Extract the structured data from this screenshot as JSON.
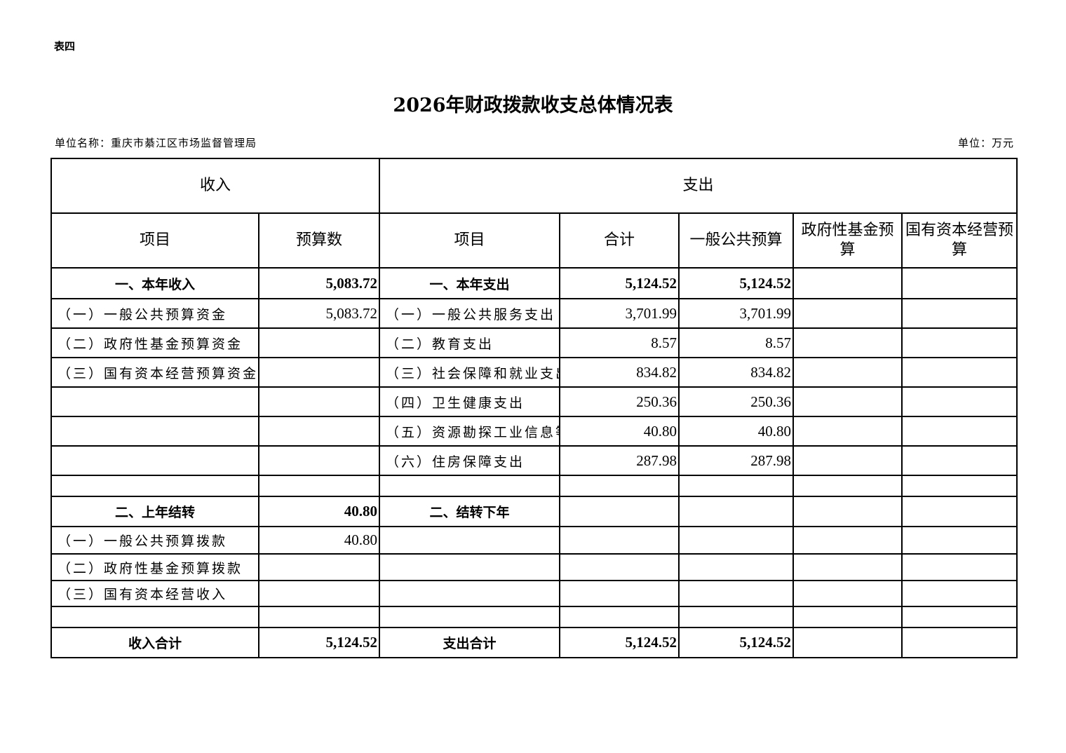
{
  "doc": {
    "tag": "表四",
    "title": "2026年财政拨款收支总体情况表",
    "unit_name": "单位名称：重庆市綦江区市场监督管理局",
    "unit": "单位：万元"
  },
  "header": {
    "income": "收入",
    "expense": "支出",
    "item": "项目",
    "budget": "预算数",
    "item2": "项目",
    "total": "合计",
    "general": "一般公共预算",
    "fund": "政府性基金预算",
    "state": "国有资本经营预算"
  },
  "rows": [
    {
      "inc": "一、本年收入",
      "incv": "5,083.72",
      "exp": "一、本年支出",
      "tot": "5,124.52",
      "gen": "5,124.52",
      "bold": true
    },
    {
      "inc": "（一）一般公共预算资金",
      "incv": "5,083.72",
      "exp": "（一）一般公共服务支出",
      "tot": "3,701.99",
      "gen": "3,701.99"
    },
    {
      "inc": "（二）政府性基金预算资金",
      "incv": "",
      "exp": "（二）教育支出",
      "tot": "8.57",
      "gen": "8.57"
    },
    {
      "inc": "（三）国有资本经营预算资金",
      "incv": "",
      "exp": "（三）社会保障和就业支出",
      "tot": "834.82",
      "gen": "834.82"
    },
    {
      "inc": "",
      "incv": "",
      "exp": "（四）卫生健康支出",
      "tot": "250.36",
      "gen": "250.36"
    },
    {
      "inc": "",
      "incv": "",
      "exp": "（五）资源勘探工业信息等",
      "tot": "40.80",
      "gen": "40.80"
    },
    {
      "inc": "",
      "incv": "",
      "exp": "（六）住房保障支出",
      "tot": "287.98",
      "gen": "287.98"
    },
    {
      "inc": "",
      "incv": "",
      "exp": "",
      "tot": "",
      "gen": ""
    },
    {
      "inc": "二、上年结转",
      "incv": "40.80",
      "exp": "二、结转下年",
      "tot": "",
      "gen": "",
      "bold": true
    },
    {
      "inc": "（一）一般公共预算拨款",
      "incv": "40.80",
      "exp": "",
      "tot": "",
      "gen": ""
    },
    {
      "inc": "（二）政府性基金预算拨款",
      "incv": "",
      "exp": "",
      "tot": "",
      "gen": ""
    },
    {
      "inc": "（三）国有资本经营收入",
      "incv": "",
      "exp": "",
      "tot": "",
      "gen": ""
    },
    {
      "inc": "",
      "incv": "",
      "exp": "",
      "tot": "",
      "gen": ""
    },
    {
      "inc": "收入合计",
      "incv": "5,124.52",
      "exp": "支出合计",
      "tot": "5,124.52",
      "gen": "5,124.52",
      "bold": true
    }
  ]
}
